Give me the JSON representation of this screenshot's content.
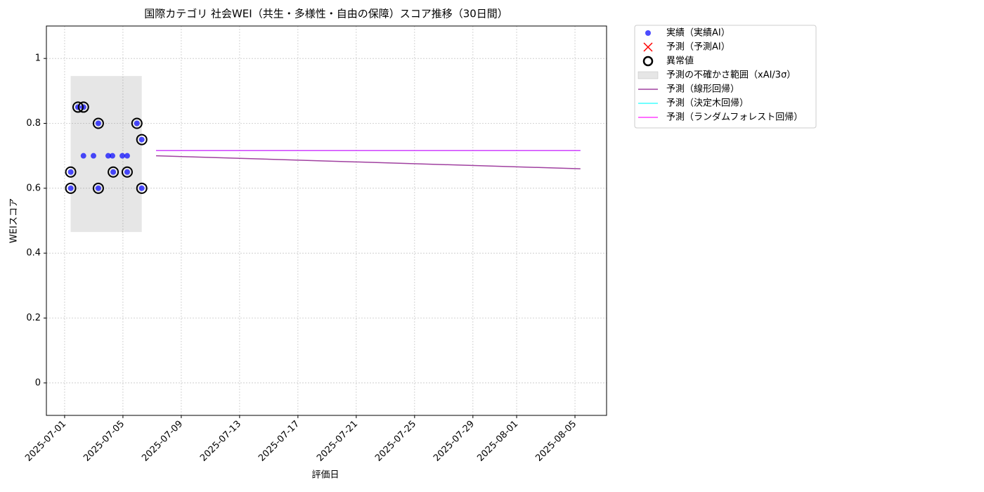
{
  "chart_data": {
    "type": "line",
    "title": "国際カテゴリ 社会WEI（共生・多様性・自由の保障）スコア推移（30日間）",
    "x_label": "評価日",
    "y_label": "WEIスコア",
    "xlim": [
      "2025-06-29T18:00",
      "2025-08-07T04:00"
    ],
    "xticks": [
      "2025-07-01",
      "2025-07-05",
      "2025-07-09",
      "2025-07-13",
      "2025-07-17",
      "2025-07-21",
      "2025-07-25",
      "2025-07-29",
      "2025-08-01",
      "2025-08-05"
    ],
    "ylim": [
      -0.1,
      1.1
    ],
    "yticks": [
      0.0,
      0.2,
      0.4,
      0.6,
      0.8,
      1.0
    ],
    "grid": true,
    "legend": "outside-upper-right",
    "series": [
      {
        "name": "実績（実績AI）",
        "kind": "scatter",
        "color": "#0000ff",
        "x": [
          "2025-07-01T10:00",
          "2025-07-01T10:00",
          "2025-07-01T22:00",
          "2025-07-02T07:00",
          "2025-07-02T07:00",
          "2025-07-02T23:30",
          "2025-07-03T07:30",
          "2025-07-03T07:30",
          "2025-07-03T23:45",
          "2025-07-04T06:45",
          "2025-07-04T08:00",
          "2025-07-04T23:00",
          "2025-07-05T07:00",
          "2025-07-05T07:00",
          "2025-07-05T23:00",
          "2025-07-06T07:00",
          "2025-07-06T07:00"
        ],
        "values": [
          0.65,
          0.6,
          0.85,
          0.85,
          0.7,
          0.7,
          0.8,
          0.6,
          0.7,
          0.7,
          0.65,
          0.7,
          0.7,
          0.65,
          0.8,
          0.75,
          0.6
        ]
      },
      {
        "name": "予測（予測AI）",
        "kind": "cross",
        "color": "#ff0000",
        "x": [],
        "values": []
      },
      {
        "name": "異常値",
        "kind": "ring",
        "color": "#000000",
        "x": [
          "2025-07-01T10:00",
          "2025-07-01T10:00",
          "2025-07-01T22:00",
          "2025-07-02T07:00",
          "2025-07-03T07:30",
          "2025-07-03T07:30",
          "2025-07-04T08:00",
          "2025-07-05T07:00",
          "2025-07-05T23:00",
          "2025-07-06T07:00",
          "2025-07-06T07:00"
        ],
        "values": [
          0.65,
          0.6,
          0.85,
          0.85,
          0.8,
          0.6,
          0.65,
          0.65,
          0.8,
          0.75,
          0.6
        ]
      },
      {
        "name": "予測の不確かさ範囲（xAI/3σ）",
        "kind": "band",
        "color": "#808080",
        "x": [
          "2025-07-01T10:00",
          "2025-07-06T07:00"
        ],
        "lower": [
          0.465,
          0.465
        ],
        "upper": [
          0.946,
          0.946
        ]
      },
      {
        "name": "予測（線形回帰）",
        "kind": "line",
        "color": "#800080",
        "x": [
          "2025-07-07T06:30",
          "2025-08-05T09:00"
        ],
        "values": [
          0.7,
          0.66
        ]
      },
      {
        "name": "予測（決定木回帰）",
        "kind": "line",
        "color": "#00ffff",
        "x": [
          "2025-07-07T06:30",
          "2025-08-05T09:00"
        ],
        "values": [
          0.716,
          0.716
        ]
      },
      {
        "name": "予測（ランダムフォレスト回帰）",
        "kind": "line",
        "color": "#ff00ff",
        "x": [
          "2025-07-07T06:30",
          "2025-08-05T09:00"
        ],
        "values": [
          0.716,
          0.716
        ]
      }
    ]
  }
}
